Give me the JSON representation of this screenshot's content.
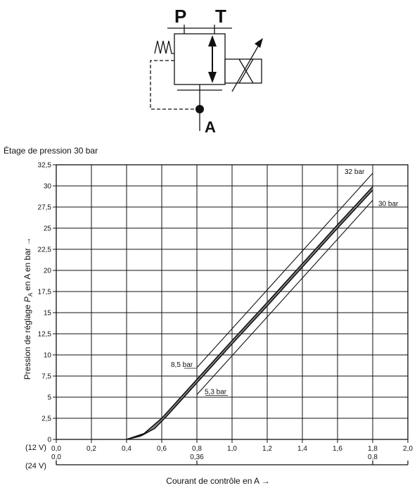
{
  "symbol": {
    "port_p": "P",
    "port_t": "T",
    "port_a": "A"
  },
  "chart_data": {
    "type": "line",
    "title": "Étage de pression 30 bar",
    "xlabel": "Courant de contrôle en A",
    "xlabel_arrow": "→",
    "ylabel": "Pression de réglage",
    "ylabel_symbol": "P",
    "ylabel_subscript": "A",
    "ylabel_suffix": "en A en bar",
    "ylabel_arrow": "→",
    "xlim": [
      0,
      2.0
    ],
    "ylim": [
      0,
      32.5
    ],
    "x_ticks": [
      "0,0",
      "0,2",
      "0,4",
      "0,6",
      "0,8",
      "1,0",
      "1,2",
      "1,4",
      "1,6",
      "1,8",
      "2,0"
    ],
    "y_ticks": [
      "0",
      "2,5",
      "5",
      "7,5",
      "10",
      "12,5",
      "15",
      "17,5",
      "20",
      "22,5",
      "25",
      "27,5",
      "30",
      "32,5"
    ],
    "grid": true,
    "secondary_axes": [
      {
        "label": "(12 V)"
      },
      {
        "label": "(24 V)",
        "ticks": [
          {
            "x": 0.0,
            "label": "0,0"
          },
          {
            "x": 0.8,
            "label": "0,36"
          },
          {
            "x": 1.8,
            "label": "0,8"
          }
        ]
      }
    ],
    "series": [
      {
        "points": [
          [
            0.4,
            0
          ],
          [
            0.5,
            0.7
          ],
          [
            0.6,
            2.5
          ],
          [
            0.7,
            4.8
          ],
          [
            0.8,
            7.1
          ],
          [
            1.0,
            11.7
          ],
          [
            1.2,
            16.2
          ],
          [
            1.4,
            20.8
          ],
          [
            1.6,
            25.4
          ],
          [
            1.8,
            29.9
          ]
        ]
      },
      {
        "points": [
          [
            0.4,
            0
          ],
          [
            0.48,
            0.4
          ],
          [
            0.56,
            1.3
          ],
          [
            0.63,
            2.8
          ],
          [
            0.7,
            4.4
          ],
          [
            0.8,
            6.7
          ],
          [
            1.0,
            11.3
          ],
          [
            1.2,
            15.8
          ],
          [
            1.4,
            20.4
          ],
          [
            1.6,
            25.0
          ],
          [
            1.8,
            29.5
          ]
        ]
      }
    ],
    "tolerance_lines": [
      {
        "label": "32 bar",
        "points": [
          [
            0.8,
            8.5
          ],
          [
            1.8,
            31.5
          ]
        ]
      },
      {
        "label": "30 bar",
        "points": [
          [
            0.8,
            5.3
          ],
          [
            1.8,
            28.3
          ]
        ]
      }
    ],
    "annotations": [
      {
        "text": "8,5 bar",
        "x": 0.8,
        "y": 8.5
      },
      {
        "text": "5,3 bar",
        "x": 0.8,
        "y": 5.3
      }
    ]
  }
}
